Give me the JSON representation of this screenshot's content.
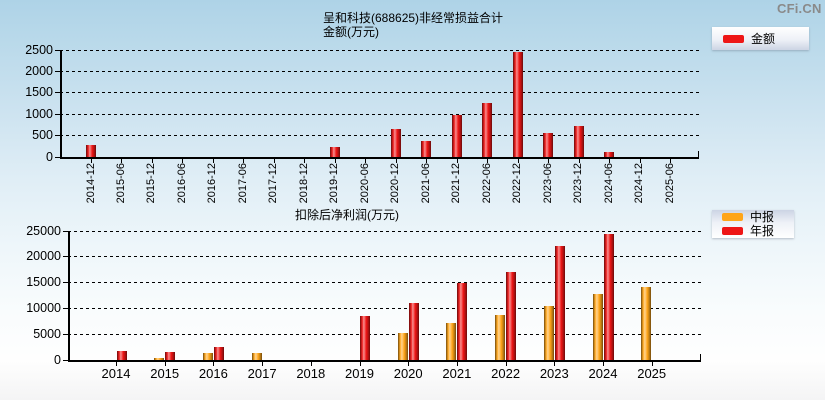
{
  "watermark": "CFi.CN",
  "colors": {
    "bar_red": "#ee1616",
    "bar_orange": "#ffa519",
    "axis": "#000000",
    "gridline": "#000000",
    "watermark_gray": "#8a8a8a",
    "background_top": "#aed3e7",
    "background_bottom": "#f4f4f5"
  },
  "chart_data": [
    {
      "type": "bar",
      "title": "呈和科技(688625)非经常损益合计",
      "subtitle": "金额(万元)",
      "categories": [
        "2014-12",
        "2015-06",
        "2015-12",
        "2016-06",
        "2016-12",
        "2017-06",
        "2017-12",
        "2018-12",
        "2019-12",
        "2020-06",
        "2020-12",
        "2021-06",
        "2021-12",
        "2022-06",
        "2022-12",
        "2023-06",
        "2023-12",
        "2024-06",
        "2024-12",
        "2025-06"
      ],
      "series": [
        {
          "name": "金额",
          "color": "#ee1616",
          "values": [
            280,
            0,
            0,
            0,
            0,
            0,
            0,
            0,
            230,
            0,
            650,
            380,
            970,
            1270,
            2450,
            570,
            730,
            110,
            0,
            0
          ]
        }
      ],
      "ylim": [
        0,
        2500
      ],
      "yticks": [
        0,
        500,
        1000,
        1500,
        2000,
        2500
      ],
      "grid": "dashed-horizontal",
      "legend_position": "top-right",
      "xlabel_rotation": 90
    },
    {
      "type": "bar",
      "title": "扣除后净利润(万元)",
      "subtitle": "",
      "categories": [
        "2014",
        "2015",
        "2016",
        "2017",
        "2018",
        "2019",
        "2020",
        "2021",
        "2022",
        "2023",
        "2024",
        "2025"
      ],
      "series": [
        {
          "name": "中报",
          "color": "#ffa519",
          "values": [
            null,
            450,
            1400,
            1400,
            null,
            null,
            5200,
            7100,
            8700,
            10400,
            12700,
            14100
          ]
        },
        {
          "name": "年报",
          "color": "#ee1616",
          "values": [
            1700,
            1500,
            2500,
            null,
            null,
            8500,
            11000,
            14900,
            17000,
            22100,
            24400,
            null
          ]
        }
      ],
      "ylim": [
        0,
        25000
      ],
      "yticks": [
        0,
        5000,
        10000,
        15000,
        20000,
        25000
      ],
      "grid": "dashed-horizontal",
      "legend_position": "top-right",
      "xlabel_rotation": 0
    }
  ]
}
